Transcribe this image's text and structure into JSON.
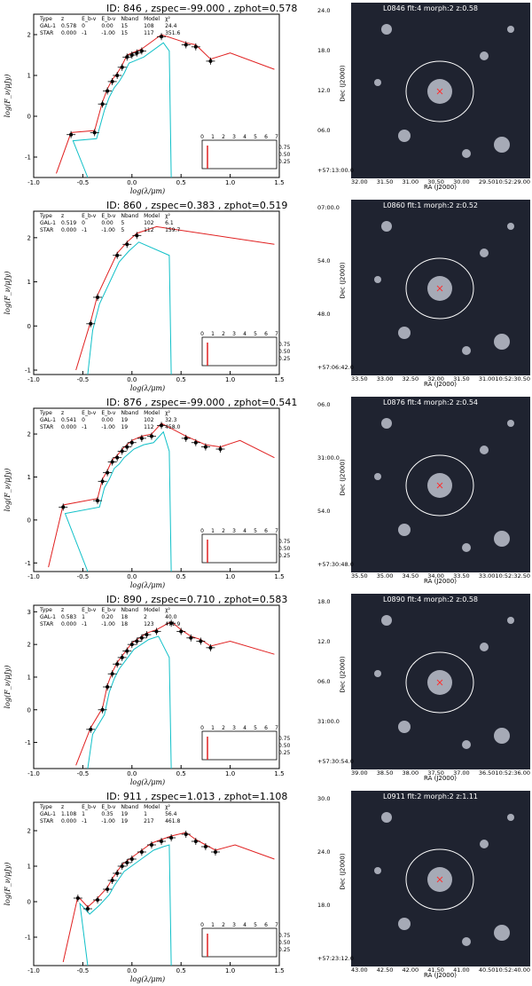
{
  "common": {
    "ylabel": "log(F_ν/μJy)",
    "xlabel": "log(λ/μm)",
    "table_headers": [
      "Type",
      "z",
      "E_b-v",
      "E_b-v",
      "Nband",
      "Model",
      "χ²"
    ],
    "inset_ticks": [
      "0",
      "1",
      "2",
      "3",
      "4",
      "5",
      "6",
      "7"
    ],
    "inset_yticks": [
      "0.75",
      "0.50",
      "0.25"
    ],
    "ra_label": "RA (J2000)",
    "dec_label": "Dec (J2000)",
    "colors": {
      "galaxy": "#e02020",
      "star": "#10c0c8",
      "contour": "#ffffff",
      "marker": "#ff3030"
    }
  },
  "panels": [
    {
      "title": "ID:  846   , zspec=-99.000 , zphot=0.578",
      "rows": [
        [
          "GAL-1",
          "0.578",
          "0",
          "0.00",
          "15",
          "108",
          "24.4"
        ],
        [
          "STAR",
          "0.000",
          "-1",
          "-1.00",
          "15",
          "117",
          "351.6"
        ]
      ],
      "image_label": "L0846   flt:4   morph:2   z:0.58",
      "dec_ticks": [
        "24.0",
        "18.0",
        "12.0",
        "06.0",
        "+57:13:00.0"
      ],
      "ra_ticks": [
        "32.00",
        "31.50",
        "31.00",
        "30.50",
        "30.00",
        "29.5010:52:29.00"
      ],
      "chart_data": {
        "type": "line",
        "xlim": [
          -1.0,
          1.5
        ],
        "ylim": [
          -1.5,
          2.5
        ],
        "xticks": [
          "-1.0",
          "-0.5",
          "0.0",
          "0.5",
          "1.0",
          "1.5"
        ],
        "yticks": [
          "-1",
          "0",
          "1",
          "2"
        ],
        "points": [
          [
            -0.62,
            -0.45
          ],
          [
            -0.38,
            -0.4
          ],
          [
            -0.3,
            0.3
          ],
          [
            -0.25,
            0.62
          ],
          [
            -0.2,
            0.85
          ],
          [
            -0.15,
            1.0
          ],
          [
            -0.1,
            1.2
          ],
          [
            -0.05,
            1.45
          ],
          [
            0.0,
            1.5
          ],
          [
            0.05,
            1.55
          ],
          [
            0.1,
            1.6
          ],
          [
            0.3,
            1.95
          ],
          [
            0.55,
            1.75
          ],
          [
            0.65,
            1.7
          ],
          [
            0.8,
            1.35
          ]
        ]
      }
    },
    {
      "title": "ID:  860   , zspec=0.383 , zphot=0.519",
      "rows": [
        [
          "GAL-1",
          "0.519",
          "0",
          "0.00",
          "5",
          "102",
          "6.1"
        ],
        [
          "STAR",
          "0.000",
          "-1",
          "-1.00",
          "5",
          "112",
          "159.7"
        ]
      ],
      "image_label": "L0860   flt:1   morph:2   z:0.52",
      "dec_ticks": [
        "07:00.0",
        "54.0",
        "48.0",
        "+57:06:42.0"
      ],
      "ra_ticks": [
        "33.50",
        "33.00",
        "32.50",
        "32.00",
        "31.50",
        "31.0010:52:30.50"
      ],
      "chart_data": {
        "type": "line",
        "xlim": [
          -1.0,
          1.5
        ],
        "ylim": [
          -1.1,
          2.6
        ],
        "xticks": [
          "-1.0",
          "-0.5",
          "0.0",
          "0.5",
          "1.0",
          "1.5"
        ],
        "yticks": [
          "-1",
          "0",
          "1",
          "2"
        ],
        "points": [
          [
            -0.42,
            0.05
          ],
          [
            -0.35,
            0.65
          ],
          [
            -0.15,
            1.6
          ],
          [
            -0.05,
            1.85
          ],
          [
            0.05,
            2.05
          ]
        ]
      }
    },
    {
      "title": "ID:  876   , zspec=-99.000 , zphot=0.541",
      "rows": [
        [
          "GAL-1",
          "0.541",
          "0",
          "0.00",
          "19",
          "102",
          "32.3"
        ],
        [
          "STAR",
          "0.000",
          "-1",
          "-1.00",
          "19",
          "112",
          "458.0"
        ]
      ],
      "image_label": "L0876   flt:4   morph:2   z:0.54",
      "dec_ticks": [
        "06.0",
        "31:00.0",
        "54.0",
        "+57:30:48.0"
      ],
      "ra_ticks": [
        "35.50",
        "35.00",
        "34.50",
        "34.00",
        "33.50",
        "33.0010:52:32.50"
      ],
      "chart_data": {
        "type": "line",
        "xlim": [
          -1.0,
          1.5
        ],
        "ylim": [
          -1.2,
          2.6
        ],
        "xticks": [
          "-1.0",
          "-0.5",
          "0.0",
          "0.5",
          "1.0",
          "1.5"
        ],
        "yticks": [
          "-1",
          "0",
          "1",
          "2"
        ],
        "points": [
          [
            -0.7,
            0.3
          ],
          [
            -0.35,
            0.45
          ],
          [
            -0.3,
            0.9
          ],
          [
            -0.25,
            1.1
          ],
          [
            -0.2,
            1.35
          ],
          [
            -0.15,
            1.45
          ],
          [
            -0.1,
            1.6
          ],
          [
            -0.05,
            1.7
          ],
          [
            0.0,
            1.8
          ],
          [
            0.1,
            1.9
          ],
          [
            0.2,
            1.95
          ],
          [
            0.3,
            2.2
          ],
          [
            0.55,
            1.9
          ],
          [
            0.65,
            1.8
          ],
          [
            0.75,
            1.7
          ],
          [
            0.9,
            1.65
          ]
        ]
      }
    },
    {
      "title": "ID:  890   , zspec=0.710 , zphot=0.583",
      "rows": [
        [
          "GAL-1",
          "0.583",
          "1",
          "0.20",
          "18",
          "2",
          "40.0"
        ],
        [
          "STAR",
          "0.000",
          "-1",
          "-1.00",
          "18",
          "123",
          "471.9"
        ]
      ],
      "image_label": "L0890   flt:4   morph:2   z:0.58",
      "dec_ticks": [
        "18.0",
        "12.0",
        "06.0",
        "31:00.0",
        "+57:30:54.0"
      ],
      "ra_ticks": [
        "39.00",
        "38.50",
        "38.00",
        "37.50",
        "37.00",
        "36.5010:52:36.00"
      ],
      "chart_data": {
        "type": "line",
        "xlim": [
          -1.0,
          1.5
        ],
        "ylim": [
          -1.8,
          3.2
        ],
        "xticks": [
          "-1.0",
          "-0.5",
          "0.0",
          "0.5",
          "1.0",
          "1.5"
        ],
        "yticks": [
          "-1",
          "0",
          "1",
          "2",
          "3"
        ],
        "points": [
          [
            -0.42,
            -0.6
          ],
          [
            -0.3,
            0.0
          ],
          [
            -0.25,
            0.7
          ],
          [
            -0.2,
            1.1
          ],
          [
            -0.15,
            1.4
          ],
          [
            -0.1,
            1.6
          ],
          [
            -0.05,
            1.8
          ],
          [
            0.0,
            2.0
          ],
          [
            0.05,
            2.1
          ],
          [
            0.1,
            2.2
          ],
          [
            0.15,
            2.3
          ],
          [
            0.25,
            2.4
          ],
          [
            0.4,
            2.65
          ],
          [
            0.5,
            2.4
          ],
          [
            0.6,
            2.2
          ],
          [
            0.7,
            2.1
          ],
          [
            0.8,
            1.9
          ]
        ]
      }
    },
    {
      "title": "ID:  911   , zspec=1.013 , zphot=1.108",
      "rows": [
        [
          "GAL-1",
          "1.108",
          "1",
          "0.35",
          "19",
          "1",
          "56.4"
        ],
        [
          "STAR",
          "0.000",
          "-1",
          "-1.00",
          "19",
          "217",
          "461.8"
        ]
      ],
      "image_label": "L0911   flt:2   morph:2   z:1.11",
      "dec_ticks": [
        "30.0",
        "24.0",
        "18.0",
        "+57:23:12.0"
      ],
      "ra_ticks": [
        "43.00",
        "42.50",
        "42.00",
        "41.50",
        "41.00",
        "40.5010:52:40.00"
      ],
      "chart_data": {
        "type": "line",
        "xlim": [
          -1.0,
          1.5
        ],
        "ylim": [
          -1.8,
          2.8
        ],
        "xticks": [
          "-1.0",
          "-0.5",
          "0.0",
          "0.5",
          "1.0",
          "1.5"
        ],
        "yticks": [
          "-1",
          "0",
          "1",
          "2"
        ],
        "points": [
          [
            -0.55,
            0.1
          ],
          [
            -0.45,
            -0.2
          ],
          [
            -0.35,
            0.05
          ],
          [
            -0.25,
            0.35
          ],
          [
            -0.2,
            0.6
          ],
          [
            -0.15,
            0.8
          ],
          [
            -0.1,
            1.0
          ],
          [
            -0.05,
            1.1
          ],
          [
            0.0,
            1.2
          ],
          [
            0.1,
            1.4
          ],
          [
            0.2,
            1.6
          ],
          [
            0.3,
            1.7
          ],
          [
            0.4,
            1.8
          ],
          [
            0.55,
            1.9
          ],
          [
            0.65,
            1.7
          ],
          [
            0.75,
            1.55
          ],
          [
            0.85,
            1.4
          ]
        ]
      }
    }
  ]
}
